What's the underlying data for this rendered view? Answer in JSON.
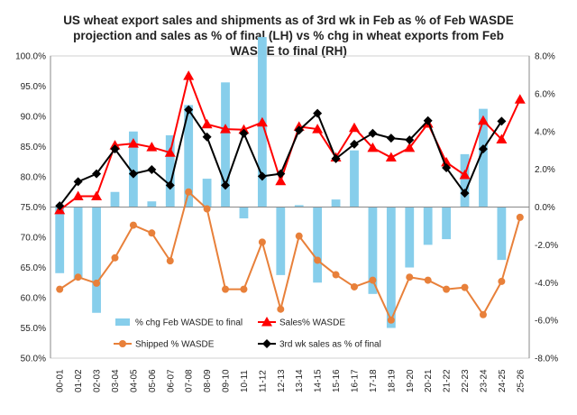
{
  "chart_data": {
    "type": "combo bar-line",
    "title_lines": [
      "US wheat export sales and shipments as of 3rd wk in Feb as % of Feb WASDE",
      "projection and  sales as % of final (LH) vs % chg in wheat exports from Feb",
      "WASDE to final (RH)"
    ],
    "categories": [
      "00-01",
      "01-02",
      "02-03",
      "03-04",
      "04-05",
      "05-06",
      "06-07",
      "07-08",
      "08-09",
      "09-10",
      "10-11",
      "11-12",
      "12-13",
      "13-14",
      "14-15",
      "15-16",
      "16-17",
      "17-18",
      "18-19",
      "19-20",
      "20-21",
      "21-22",
      "22-23",
      "23-24",
      "24-25",
      "25-26"
    ],
    "left_axis": {
      "min": 50,
      "max": 100,
      "step": 5,
      "tick_labels": [
        "50.0%",
        "55.0%",
        "60.0%",
        "65.0%",
        "70.0%",
        "75.0%",
        "80.0%",
        "85.0%",
        "90.0%",
        "95.0%",
        "100.0%"
      ]
    },
    "right_axis": {
      "min": -8,
      "max": 8,
      "step": 2,
      "tick_labels": [
        "-8.0%",
        "-6.0%",
        "-4.0%",
        "-2.0%",
        "0.0%",
        "2.0%",
        "4.0%",
        "6.0%",
        "8.0%"
      ]
    },
    "series": [
      {
        "name": "% chg Feb WASDE to final",
        "kind": "bar",
        "axis": "right",
        "color": "#87CEEB",
        "values": [
          -3.5,
          -3.8,
          -5.6,
          0.8,
          4.0,
          0.3,
          3.8,
          5.4,
          1.5,
          6.6,
          -0.6,
          9.0,
          -3.6,
          0.1,
          -4.0,
          0.4,
          3.0,
          -4.6,
          -6.4,
          -3.2,
          -2.0,
          -1.7,
          2.8,
          5.2,
          -2.8,
          null
        ]
      },
      {
        "name": "Sales% WASDE",
        "kind": "line",
        "axis": "left",
        "color": "#FF0000",
        "marker": "triangle",
        "values": [
          74.5,
          76.8,
          76.8,
          85.2,
          85.5,
          84.9,
          84.0,
          96.7,
          88.7,
          87.9,
          87.8,
          89.0,
          79.3,
          88.3,
          87.9,
          83.2,
          88.1,
          84.8,
          83.2,
          84.8,
          88.8,
          82.4,
          80.3,
          89.3,
          86.2,
          92.8
        ]
      },
      {
        "name": "Shipped % WASDE",
        "kind": "line",
        "axis": "left",
        "color": "#E8803A",
        "marker": "circle",
        "values": [
          61.4,
          63.4,
          62.4,
          66.6,
          72.0,
          70.7,
          66.1,
          77.5,
          74.7,
          61.4,
          61.4,
          69.2,
          58.1,
          70.2,
          66.2,
          63.8,
          61.8,
          62.9,
          56.3,
          63.4,
          62.9,
          61.4,
          61.7,
          57.2,
          62.7,
          73.3
        ]
      },
      {
        "name": "3rd wk sales as % of final",
        "kind": "line",
        "axis": "left",
        "color": "#000000",
        "marker": "diamond",
        "values": [
          75.2,
          79.2,
          80.5,
          84.6,
          80.5,
          81.2,
          78.6,
          91.1,
          86.6,
          78.6,
          87.2,
          80.1,
          80.5,
          87.7,
          90.5,
          83.0,
          85.4,
          87.2,
          86.4,
          86.1,
          89.3,
          81.5,
          77.3,
          84.6,
          89.2,
          null
        ]
      }
    ],
    "legend_position": "bottom",
    "grid": false
  }
}
